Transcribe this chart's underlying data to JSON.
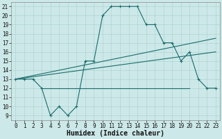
{
  "title": "",
  "xlabel": "Humidex (Indice chaleur)",
  "bg_color": "#cce8e8",
  "line_color": "#1a6b6b",
  "xlim": [
    -0.5,
    23.5
  ],
  "ylim": [
    8.5,
    21.5
  ],
  "yticks": [
    9,
    10,
    11,
    12,
    13,
    14,
    15,
    16,
    17,
    18,
    19,
    20,
    21
  ],
  "xticks": [
    0,
    1,
    2,
    3,
    4,
    5,
    6,
    7,
    8,
    9,
    10,
    11,
    12,
    13,
    14,
    15,
    16,
    17,
    18,
    19,
    20,
    21,
    22,
    23
  ],
  "curve1_x": [
    0,
    1,
    2,
    3,
    4,
    5,
    6,
    7,
    8,
    9,
    10,
    11,
    12,
    13,
    14,
    15,
    16,
    17,
    18,
    19,
    20,
    21,
    22,
    23
  ],
  "curve1_y": [
    13,
    13,
    13,
    12,
    9,
    10,
    9,
    10,
    15,
    15,
    20,
    21,
    21,
    21,
    21,
    19,
    19,
    17,
    17,
    15,
    16,
    13,
    12,
    12
  ],
  "curve2_x": [
    0,
    23
  ],
  "curve2_y": [
    13,
    17.5
  ],
  "curve3_x": [
    0,
    23
  ],
  "curve3_y": [
    13,
    16
  ],
  "curve4_x": [
    3,
    20
  ],
  "curve4_y": [
    12,
    12
  ],
  "tick_fontsize": 5.5,
  "label_fontsize": 7
}
